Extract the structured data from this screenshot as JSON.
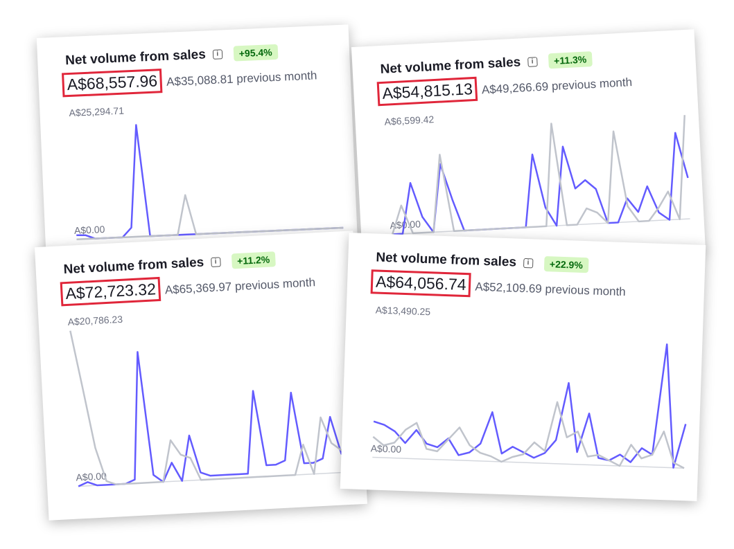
{
  "chart_data": [
    {
      "type": "line",
      "title": "Net volume from sales",
      "badge": "+95.4%",
      "amount": "A$68,557.96",
      "comparison": "A$35,088.81 previous month",
      "categories": [
        null,
        null,
        null,
        null,
        null,
        null,
        null,
        null,
        null,
        null,
        null,
        null,
        null,
        null,
        null,
        null,
        null,
        null,
        null,
        null,
        null,
        null,
        null,
        null,
        null,
        null,
        null,
        null,
        null,
        null
      ],
      "series": [
        {
          "color": "#635bff",
          "values": [
            900,
            800,
            0,
            0,
            0,
            0,
            2000,
            24000,
            0,
            0,
            0,
            0,
            0,
            0,
            0,
            0,
            0,
            0,
            0,
            0,
            0,
            0,
            0,
            0,
            0,
            0,
            0,
            0,
            0,
            0
          ]
        },
        {
          "color": "#c0c4cc",
          "values": [
            0,
            0,
            0,
            0,
            0,
            0,
            0,
            0,
            0,
            0,
            0,
            0,
            8500,
            0,
            0,
            0,
            0,
            0,
            0,
            0,
            0,
            0,
            0,
            0,
            0,
            0,
            0,
            0,
            0,
            0
          ]
        }
      ],
      "ylim": [
        0,
        25294.71
      ],
      "yticks": [
        {
          "value": 0,
          "label": "A$0.00"
        },
        {
          "value": 25294.71,
          "label": "A$25,294.71"
        }
      ]
    },
    {
      "type": "line",
      "title": "Net volume from sales",
      "badge": "+11.3%",
      "amount": "A$54,815.13",
      "comparison": "A$49,266.69 previous month",
      "categories": [
        null,
        null,
        null,
        null,
        null,
        null,
        null,
        null,
        null,
        null,
        null,
        null,
        null,
        null,
        null,
        null,
        null,
        null,
        null,
        null,
        null,
        null,
        null,
        null,
        null,
        null,
        null,
        null,
        null,
        null
      ],
      "series": [
        {
          "color": "#635bff",
          "values": [
            0,
            0,
            3200,
            1000,
            0,
            4300,
            2000,
            0,
            0,
            0,
            0,
            0,
            0,
            0,
            4600,
            1200,
            0,
            5000,
            2300,
            2800,
            2200,
            0,
            0,
            1500,
            600,
            2200,
            500,
            0,
            5500,
            2600
          ]
        },
        {
          "color": "#c0c4cc",
          "values": [
            0,
            1800,
            0,
            0,
            0,
            4900,
            0,
            0,
            0,
            0,
            0,
            0,
            0,
            0,
            0,
            0,
            6500,
            0,
            0,
            1000,
            700,
            0,
            5800,
            1000,
            0,
            0,
            800,
            1800,
            0,
            6600
          ]
        }
      ],
      "ylim": [
        0,
        6599.42
      ],
      "yticks": [
        {
          "value": 0,
          "label": "A$0.00"
        },
        {
          "value": 6599.42,
          "label": "A$6,599.42"
        }
      ]
    },
    {
      "type": "line",
      "title": "Net volume from sales",
      "badge": "+11.2%",
      "amount": "A$72,723.32",
      "comparison": "A$65,369.97 previous month",
      "categories": [
        null,
        null,
        null,
        null,
        null,
        null,
        null,
        null,
        null,
        null,
        null,
        null,
        null,
        null,
        null,
        null,
        null,
        null,
        null,
        null,
        null,
        null,
        null,
        null,
        null,
        null,
        null,
        null,
        null,
        null
      ],
      "series": [
        {
          "color": "#635bff",
          "values": [
            0,
            500,
            0,
            0,
            0,
            0,
            500,
            17500,
            1000,
            0,
            2500,
            0,
            6000,
            1000,
            500,
            500,
            500,
            500,
            500,
            11500,
            1500,
            1500,
            2000,
            11000,
            1500,
            1500,
            2000,
            7500,
            2500,
            1500
          ]
        },
        {
          "color": "#c0c4cc",
          "values": [
            20786,
            13000,
            5000,
            500,
            0,
            0,
            0,
            0,
            0,
            0,
            5500,
            3500,
            3000,
            0,
            0,
            0,
            0,
            0,
            0,
            0,
            0,
            0,
            0,
            0,
            4000,
            0,
            7500,
            4000,
            3000,
            2000
          ]
        }
      ],
      "ylim": [
        0,
        20786.23
      ],
      "yticks": [
        {
          "value": 0,
          "label": "A$0.00"
        },
        {
          "value": 20786.23,
          "label": "A$20,786.23"
        }
      ]
    },
    {
      "type": "line",
      "title": "Net volume from sales",
      "badge": "+22.9%",
      "amount": "A$64,056.74",
      "comparison": "A$52,109.69 previous month",
      "categories": [
        null,
        null,
        null,
        null,
        null,
        null,
        null,
        null,
        null,
        null,
        null,
        null,
        null,
        null,
        null,
        null,
        null,
        null,
        null,
        null,
        null,
        null,
        null,
        null,
        null,
        null,
        null,
        null,
        null,
        null
      ],
      "series": [
        {
          "color": "#635bff",
          "values": [
            3500,
            3200,
            2600,
            1500,
            2800,
            1500,
            1200,
            2100,
            500,
            800,
            1700,
            4800,
            800,
            1500,
            1000,
            500,
            1000,
            2300,
            7900,
            1200,
            5000,
            700,
            500,
            1100,
            400,
            1800,
            1200,
            12000,
            0,
            4300
          ]
        },
        {
          "color": "#c0c4cc",
          "values": [
            2000,
            1200,
            1500,
            2800,
            3500,
            1000,
            800,
            2000,
            3200,
            1500,
            800,
            500,
            0,
            500,
            800,
            2000,
            1200,
            6000,
            2600,
            3200,
            800,
            1000,
            500,
            0,
            2100,
            800,
            1200,
            3500,
            500,
            0
          ]
        }
      ],
      "ylim": [
        0,
        13490.25
      ],
      "yticks": [
        {
          "value": 0,
          "label": "A$0.00"
        },
        {
          "value": 13490.25,
          "label": "A$13,490.25"
        }
      ]
    }
  ]
}
